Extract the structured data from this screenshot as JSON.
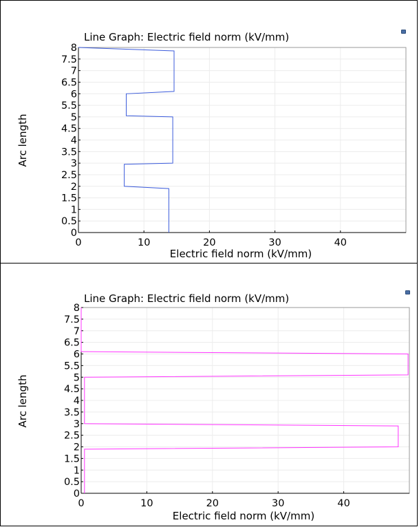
{
  "chart_data": [
    {
      "type": "line",
      "title": "Line Graph: Electric field norm (kV/mm)",
      "xlabel": "Electric field norm (kV/mm)",
      "ylabel": "Arc length",
      "xlim": [
        0,
        50
      ],
      "ylim": [
        0,
        8
      ],
      "xticks": [
        0,
        10,
        20,
        30,
        40
      ],
      "yticks": [
        0,
        0.5,
        1,
        1.5,
        2,
        2.5,
        3,
        3.5,
        4,
        4.5,
        5,
        5.5,
        6,
        6.5,
        7,
        7.5,
        8
      ],
      "color": "#3b5bdb",
      "series": [
        {
          "x": [
            13.8,
            13.8,
            7.0,
            7.0,
            14.4,
            14.4,
            7.3,
            7.3,
            14.6,
            14.6,
            0.0
          ],
          "y": [
            0.0,
            1.9,
            2.0,
            2.95,
            3.0,
            5.0,
            5.05,
            6.0,
            6.1,
            7.85,
            8.0
          ]
        }
      ]
    },
    {
      "type": "line",
      "title": "Line Graph: Electric field norm (kV/mm)",
      "xlabel": "Electric field norm (kV/mm)",
      "ylabel": "Arc length",
      "xlim": [
        0,
        50
      ],
      "ylim": [
        0,
        8
      ],
      "xticks": [
        0,
        10,
        20,
        30,
        40
      ],
      "yticks": [
        0,
        0.5,
        1,
        1.5,
        2,
        2.5,
        3,
        3.5,
        4,
        4.5,
        5,
        5.5,
        6,
        6.5,
        7,
        7.5,
        8
      ],
      "color": "#ff33ff",
      "series": [
        {
          "x": [
            0.5,
            0.5,
            48.3,
            48.3,
            0.5,
            0.5,
            49.8,
            49.8,
            0.0,
            0.0
          ],
          "y": [
            0.0,
            1.9,
            2.0,
            2.9,
            3.0,
            5.0,
            5.1,
            6.0,
            6.1,
            8.0
          ]
        }
      ]
    }
  ]
}
